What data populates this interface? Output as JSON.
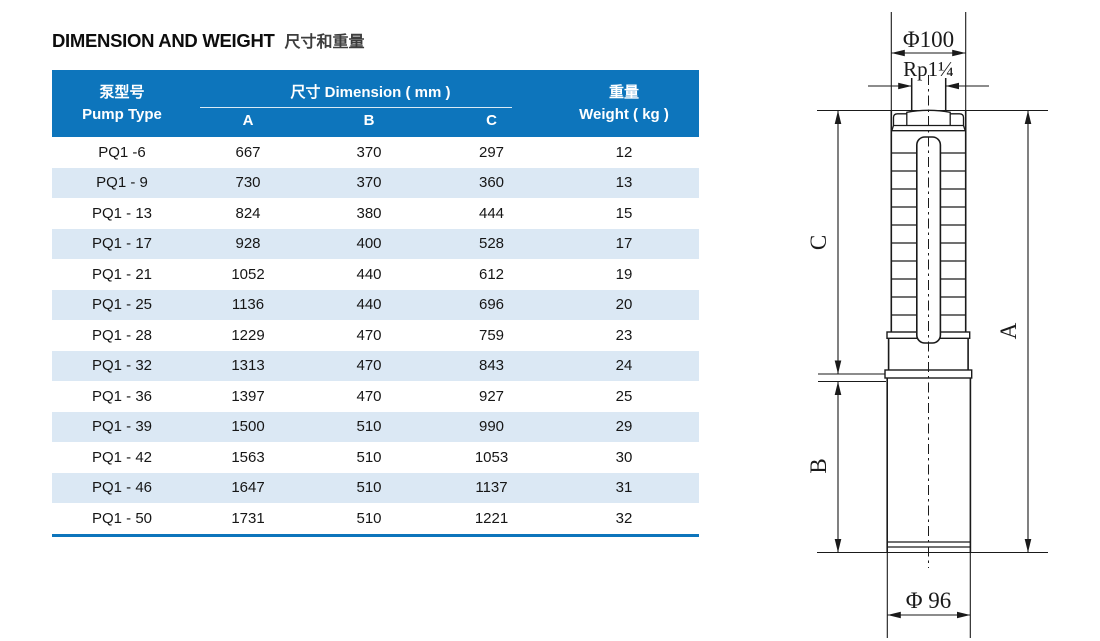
{
  "title": {
    "en": "DIMENSION AND WEIGHT",
    "zh": "尺寸和重量"
  },
  "table": {
    "header": {
      "pump_type_zh": "泵型号",
      "pump_type_en": "Pump Type",
      "dimension_group": "尺寸 Dimension ( mm )",
      "dim_cols": [
        "A",
        "B",
        "C"
      ],
      "weight_zh": "重量",
      "weight_en": "Weight ( kg )"
    },
    "rows": [
      {
        "type": "PQ1 -6",
        "a": "667",
        "b": "370",
        "c": "297",
        "w": "12"
      },
      {
        "type": "PQ1 - 9",
        "a": "730",
        "b": "370",
        "c": "360",
        "w": "13"
      },
      {
        "type": "PQ1 - 13",
        "a": "824",
        "b": "380",
        "c": "444",
        "w": "15"
      },
      {
        "type": "PQ1 - 17",
        "a": "928",
        "b": "400",
        "c": "528",
        "w": "17"
      },
      {
        "type": "PQ1 - 21",
        "a": "1052",
        "b": "440",
        "c": "612",
        "w": "19"
      },
      {
        "type": "PQ1 - 25",
        "a": "1136",
        "b": "440",
        "c": "696",
        "w": "20"
      },
      {
        "type": "PQ1 - 28",
        "a": "1229",
        "b": "470",
        "c": "759",
        "w": "23"
      },
      {
        "type": "PQ1 - 32",
        "a": "1313",
        "b": "470",
        "c": "843",
        "w": "24"
      },
      {
        "type": "PQ1 - 36",
        "a": "1397",
        "b": "470",
        "c": "927",
        "w": "25"
      },
      {
        "type": "PQ1 - 39",
        "a": "1500",
        "b": "510",
        "c": "990",
        "w": "29"
      },
      {
        "type": "PQ1 - 42",
        "a": "1563",
        "b": "510",
        "c": "1053",
        "w": "30"
      },
      {
        "type": "PQ1 - 46",
        "a": "1647",
        "b": "510",
        "c": "1137",
        "w": "31"
      },
      {
        "type": "PQ1 - 50",
        "a": "1731",
        "b": "510",
        "c": "1221",
        "w": "32"
      }
    ]
  },
  "drawing": {
    "dia_top": "Φ100",
    "thread": "Rp1¼",
    "dim_c": "C",
    "dim_b": "B",
    "dim_a": "A",
    "dia_bottom": "Φ 96"
  },
  "colors": {
    "header_blue": "#0d75bc",
    "row_stripe": "#dbe8f4",
    "line_color": "#1a1a1a"
  }
}
